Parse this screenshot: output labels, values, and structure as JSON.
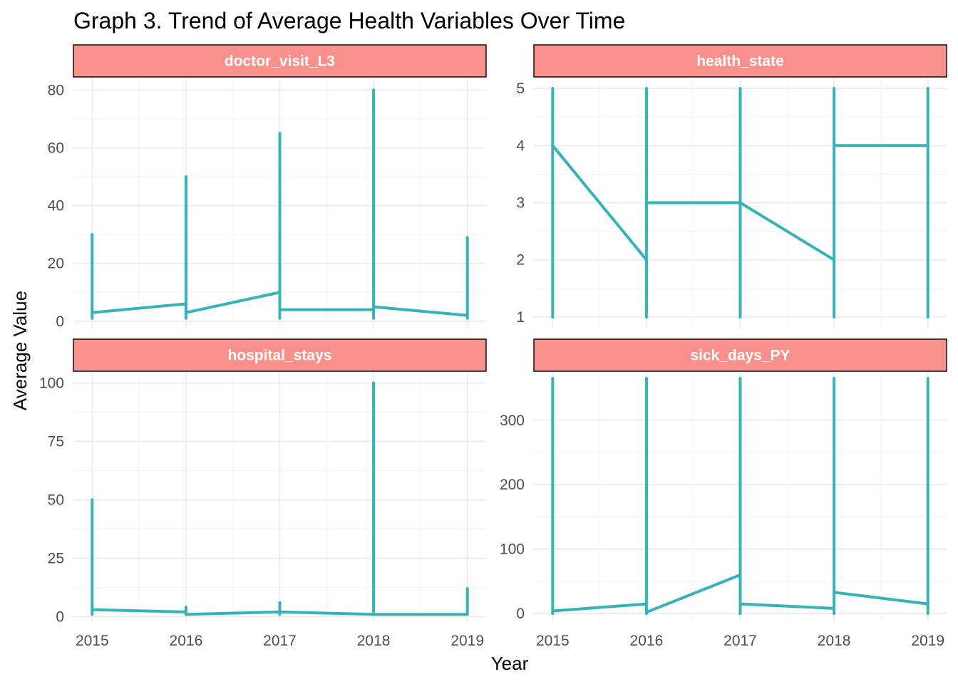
{
  "chart_data": {
    "type": "line",
    "title": "Graph 3. Trend of Average Health Variables Over Time",
    "xlabel": "Year",
    "ylabel": "Average Value",
    "grid": true,
    "legend": "none",
    "colors": {
      "line": "#35b3b7",
      "strip_fill": "#f8918b",
      "strip_border": "#000000",
      "grid_major": "#ebebeb",
      "grid_minor": "#f5f5f5"
    },
    "x_ticks": [
      2015,
      2016,
      2017,
      2018,
      2019
    ],
    "xlim": [
      2014.8,
      2019.2
    ],
    "panels": [
      {
        "name": "doctor_visit_L3",
        "ylim": [
          -2.5,
          84.5
        ],
        "y_ticks": [
          0,
          20,
          40,
          60,
          80
        ],
        "lines": [
          {
            "x": [
              2015,
              2015,
              2015
            ],
            "y": [
              1,
              30,
              3
            ]
          },
          {
            "x": [
              2015,
              2016,
              2016,
              2016,
              2016,
              2017,
              2017,
              2017,
              2017,
              2018,
              2018,
              2018,
              2018,
              2019,
              2019,
              2019,
              2019
            ],
            "y": [
              3,
              6,
              50,
              1,
              3,
              10,
              65,
              1,
              4,
              4,
              80,
              1,
              5,
              2,
              29,
              1,
              2
            ]
          }
        ]
      },
      {
        "name": "health_state",
        "ylim": [
          0.8,
          5.2
        ],
        "y_ticks": [
          1,
          2,
          3,
          4,
          5
        ],
        "lines": [
          {
            "x": [
              2015,
              2015,
              2015,
              2016,
              2016,
              2016,
              2016,
              2017,
              2017,
              2017,
              2017,
              2018,
              2018,
              2018,
              2018,
              2019,
              2019,
              2019,
              2019
            ],
            "y": [
              1,
              5,
              4,
              2,
              5,
              1,
              3,
              3,
              5,
              1,
              3,
              2,
              5,
              1,
              4,
              4,
              5,
              1,
              4
            ]
          }
        ]
      },
      {
        "name": "hospital_stays",
        "ylim": [
          -2,
          105
        ],
        "y_ticks": [
          0,
          25,
          50,
          75,
          100
        ],
        "lines": [
          {
            "x": [
              2015,
              2015,
              2015,
              2016,
              2016,
              2016,
              2016,
              2017,
              2017,
              2017,
              2017,
              2018,
              2018,
              2018,
              2018,
              2019,
              2019,
              2019,
              2019
            ],
            "y": [
              1,
              50,
              3,
              2,
              4,
              1,
              1,
              2,
              6,
              1,
              2,
              1,
              100,
              1,
              1,
              1,
              12,
              1,
              1
            ]
          }
        ]
      },
      {
        "name": "sick_days_PY",
        "ylim": [
          -12,
          376
        ],
        "y_ticks": [
          0,
          100,
          200,
          300
        ],
        "lines": [
          {
            "x": [
              2015,
              2015,
              2015,
              2016,
              2016,
              2016,
              2016,
              2017,
              2017,
              2017,
              2017,
              2018,
              2018,
              2018,
              2018,
              2019,
              2019,
              2019,
              2019
            ],
            "y": [
              0,
              365,
              4,
              15,
              365,
              0,
              2,
              60,
              365,
              0,
              15,
              8,
              365,
              0,
              33,
              15,
              365,
              0,
              15
            ]
          }
        ]
      }
    ]
  }
}
